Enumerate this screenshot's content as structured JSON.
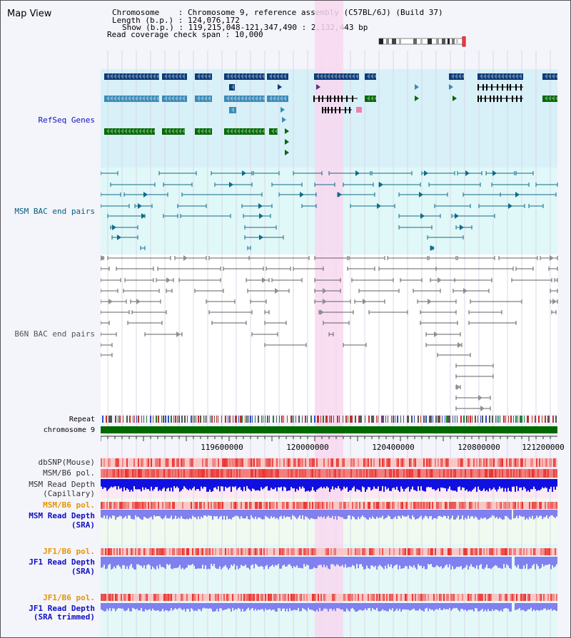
{
  "page_title": "Map View",
  "header": {
    "chromosome_label": "Chromosome",
    "chromosome_value": "Chromosome 9, reference assembly (C57BL/6J) (Build 37)",
    "length_label": "Length (b.p.)",
    "length_value": "124,076,172",
    "show_label": "Show (b.p.)",
    "show_value": "119,215,048-121,347,490 : 2,132,443 bp",
    "coverage_label": "Read coverage check span",
    "coverage_value": "10,000"
  },
  "tracks": {
    "refseq": "RefSeq Genes",
    "msm_bac": "MSM BAC end pairs",
    "b6n_bac": "B6N BAC end pairs",
    "repeat": "Repeat",
    "chromosome": "chromosome 9"
  },
  "ruler_ticks": [
    "119600000",
    "120000000",
    "120400000",
    "120800000",
    "121200000"
  ],
  "lower_tracks": [
    {
      "line1": "dbSNP(Mouse)",
      "line2": "",
      "color": "#333333"
    },
    {
      "line1": "MSM/B6 pol.",
      "line2": "",
      "color": "#333333"
    },
    {
      "line1": "MSM Read Depth",
      "line2": "(Capillary)",
      "color": "#333333"
    },
    {
      "line1": "MSM/B6 pol.",
      "line2": "",
      "color": "#e69500"
    },
    {
      "line1": "MSM Read Depth",
      "line2": "(SRA)",
      "color": "#1010c0"
    },
    {
      "line1": "JF1/B6 pol.",
      "line2": "",
      "color": "#e69500"
    },
    {
      "line1": "JF1 Read Depth",
      "line2": "(SRA)",
      "color": "#1010c0"
    },
    {
      "line1": "JF1/B6 pol.",
      "line2": "",
      "color": "#e69500"
    },
    {
      "line1": "JF1 Read Depth",
      "line2": "(SRA trimmed)",
      "color": "#1010c0"
    }
  ],
  "colors": {
    "refseq_label": "#1010c0",
    "msm_label": "#006080",
    "b6n_label": "#555555",
    "highlight": "#f8d8f0",
    "refseq_bg": "#d8f0f8",
    "msm_bg": "#e0f8f8",
    "gene_dark": "#0a3a78",
    "gene_mid": "#3a8ab8",
    "gene_green": "#006800",
    "chromosome_bar": "#006800",
    "snp_red": "#e8302a",
    "depth_blue": "#1010e0",
    "depth_light": "#8080f0"
  }
}
